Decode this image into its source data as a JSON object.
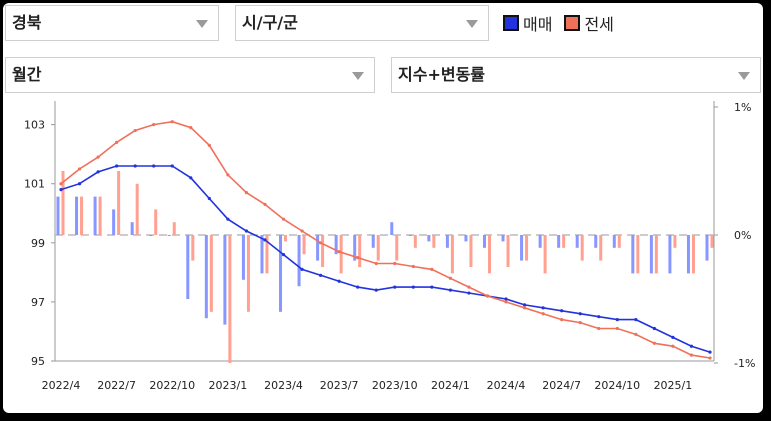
{
  "filters": {
    "region": "경북",
    "district": "시/구/군",
    "period": "월간",
    "metric": "지수+변동률"
  },
  "legend": {
    "sale": {
      "label": "매매",
      "color": "#2233dd"
    },
    "jeonse": {
      "label": "전세",
      "color": "#f0705a"
    }
  },
  "icons": {
    "dropdown": "chevron-down-icon"
  },
  "chart_data": {
    "type": "line+bar",
    "x_tick_labels": [
      "2022/4",
      "2022/7",
      "2022/10",
      "2023/1",
      "2023/4",
      "2023/7",
      "2023/10",
      "2024/1",
      "2024/4",
      "2024/7",
      "2024/10",
      "2025/1"
    ],
    "left_axis": {
      "ticks": [
        "103",
        "101",
        "99",
        "97",
        "95"
      ],
      "range": [
        95,
        103.8
      ]
    },
    "right_axis": {
      "ticks": [
        "1%",
        "0%",
        "-1%"
      ],
      "range": [
        -1,
        1
      ]
    },
    "months": [
      "2022/4",
      "2022/5",
      "2022/6",
      "2022/7",
      "2022/8",
      "2022/9",
      "2022/10",
      "2022/11",
      "2022/12",
      "2023/1",
      "2023/2",
      "2023/3",
      "2023/4",
      "2023/5",
      "2023/6",
      "2023/7",
      "2023/8",
      "2023/9",
      "2023/10",
      "2023/11",
      "2023/12",
      "2024/1",
      "2024/2",
      "2024/3",
      "2024/4",
      "2024/5",
      "2024/6",
      "2024/7",
      "2024/8",
      "2024/9",
      "2024/10",
      "2024/11",
      "2024/12",
      "2025/1",
      "2025/2",
      "2025/3"
    ],
    "series": [
      {
        "name": "매매",
        "color": "#2233dd",
        "index": [
          100.8,
          101.0,
          101.4,
          101.6,
          101.6,
          101.6,
          101.6,
          101.2,
          100.5,
          99.8,
          99.4,
          99.1,
          98.6,
          98.1,
          97.9,
          97.7,
          97.5,
          97.4,
          97.5,
          97.5,
          97.5,
          97.4,
          97.3,
          97.2,
          97.1,
          96.9,
          96.8,
          96.7,
          96.6,
          96.5,
          96.4,
          96.4,
          96.1,
          95.8,
          95.5,
          95.3
        ],
        "change_pct": [
          0.3,
          0.3,
          0.3,
          0.2,
          0.1,
          0.0,
          0.0,
          -0.5,
          -0.65,
          -0.7,
          -0.35,
          -0.3,
          -0.6,
          -0.4,
          -0.2,
          -0.15,
          -0.2,
          -0.1,
          0.1,
          0.0,
          -0.05,
          -0.1,
          -0.05,
          -0.1,
          -0.05,
          -0.2,
          -0.1,
          -0.1,
          -0.1,
          -0.1,
          -0.1,
          -0.3,
          -0.3,
          -0.3,
          -0.3,
          -0.2
        ]
      },
      {
        "name": "전세",
        "color": "#f0705a",
        "index": [
          101.0,
          101.5,
          101.9,
          102.4,
          102.8,
          103.0,
          103.1,
          102.9,
          102.3,
          101.3,
          100.7,
          100.3,
          99.8,
          99.4,
          99.0,
          98.7,
          98.5,
          98.3,
          98.3,
          98.2,
          98.1,
          97.8,
          97.5,
          97.2,
          97.0,
          96.8,
          96.6,
          96.4,
          96.3,
          96.1,
          96.1,
          95.9,
          95.6,
          95.5,
          95.2,
          95.1
        ],
        "change_pct": [
          0.5,
          0.3,
          0.3,
          0.5,
          0.4,
          0.2,
          0.1,
          -0.2,
          -0.6,
          -1.0,
          -0.6,
          -0.3,
          -0.05,
          -0.15,
          -0.25,
          -0.3,
          -0.25,
          -0.2,
          -0.2,
          -0.1,
          -0.1,
          -0.3,
          -0.25,
          -0.3,
          -0.25,
          -0.2,
          -0.3,
          -0.1,
          -0.2,
          -0.2,
          -0.1,
          -0.3,
          -0.3,
          -0.1,
          -0.3,
          -0.1
        ]
      }
    ]
  }
}
